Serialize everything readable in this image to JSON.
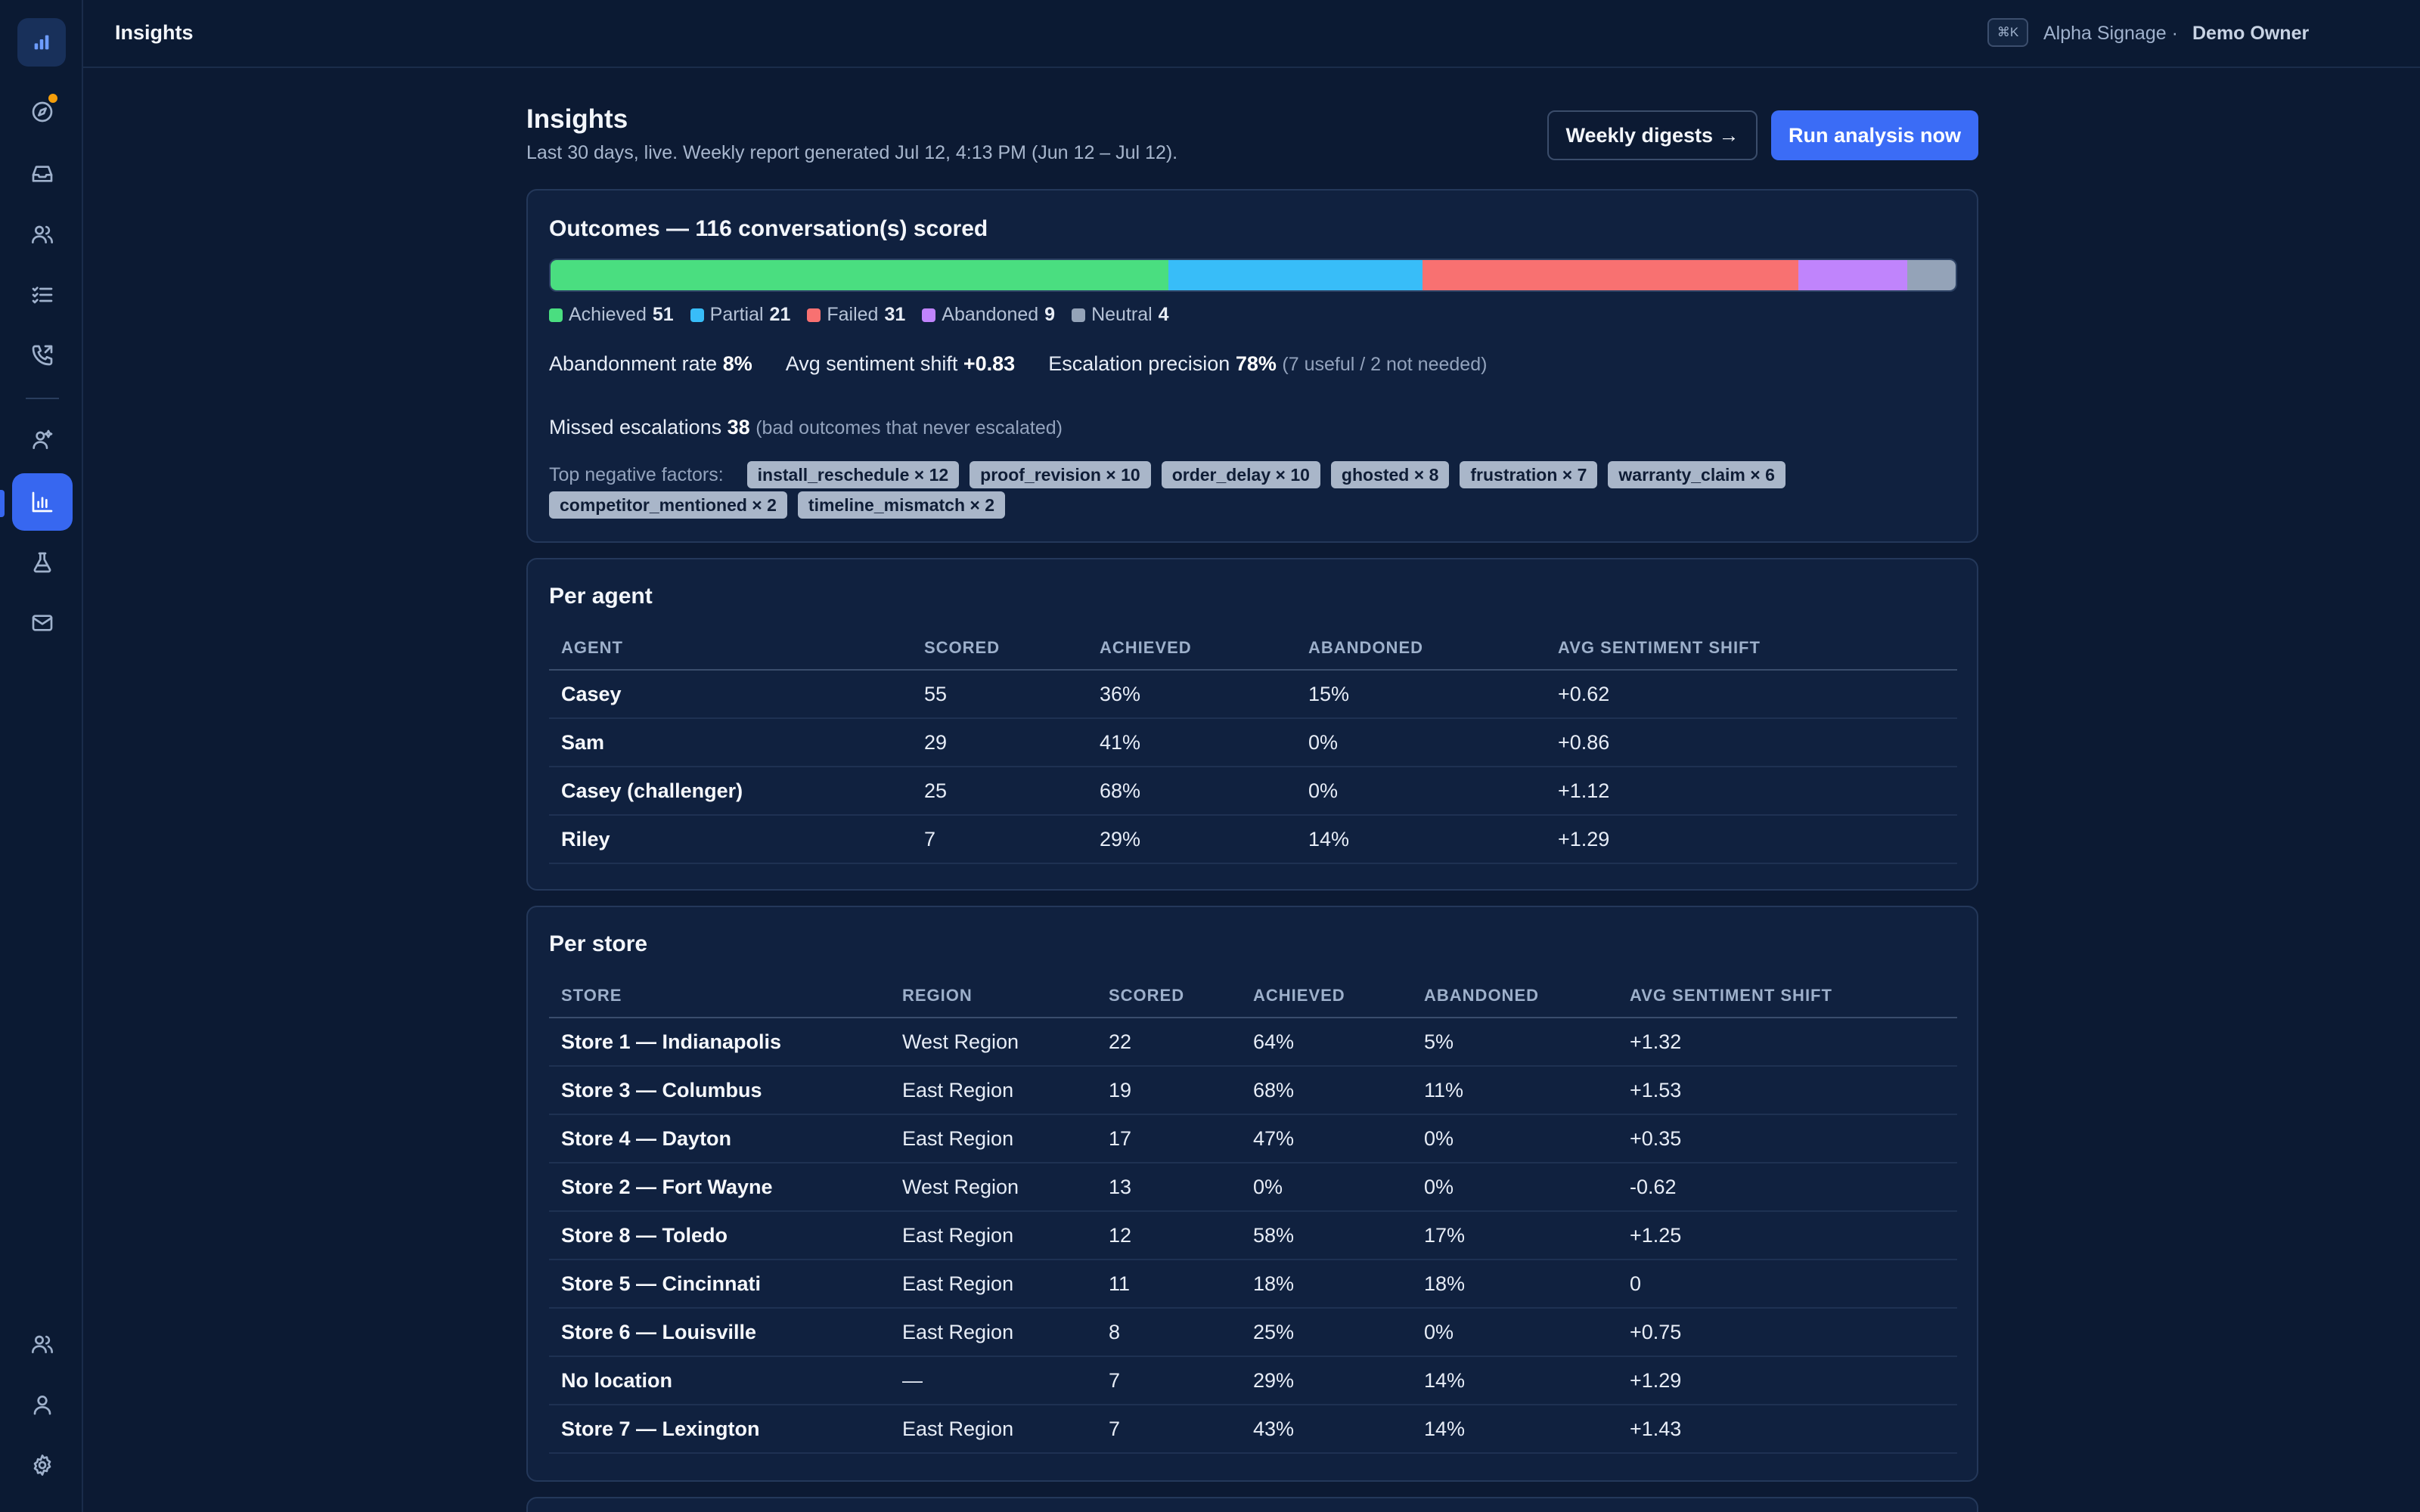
{
  "app": {
    "title": "Insights",
    "kbd": "⌘K",
    "org": "Alpha Signage ·",
    "owner": "Demo Owner"
  },
  "header": {
    "title": "Insights",
    "subtitle": "Last 30 days, live. Weekly report generated Jul 12, 4:13 PM (Jun 12 – Jul 12).",
    "digest_button": "Weekly digests →",
    "run_button": "Run analysis now"
  },
  "outcomes": {
    "title": "Outcomes — 116 conversation(s) scored",
    "segments": [
      {
        "label": "Achieved",
        "value": 51,
        "color": "#4ade80"
      },
      {
        "label": "Partial",
        "value": 21,
        "color": "#38bdf8"
      },
      {
        "label": "Failed",
        "value": 31,
        "color": "#f87171"
      },
      {
        "label": "Abandoned",
        "value": 9,
        "color": "#c084fc"
      },
      {
        "label": "Neutral",
        "value": 4,
        "color": "#94a3b8"
      }
    ],
    "abandonment_label": "Abandonment rate",
    "abandonment_value": "8%",
    "sentiment_label": "Avg sentiment shift",
    "sentiment_value": "+0.83",
    "escalation_label": "Escalation precision",
    "escalation_value": "78%",
    "escalation_note": "(7 useful / 2 not needed)",
    "missed_label": "Missed escalations",
    "missed_value": "38",
    "missed_note": "(bad outcomes that never escalated)",
    "factors_label": "Top negative factors:",
    "factors": [
      "install_reschedule × 12",
      "proof_revision × 10",
      "order_delay × 10",
      "ghosted × 8",
      "frustration × 7",
      "warranty_claim × 6",
      "competitor_mentioned × 2",
      "timeline_mismatch × 2"
    ]
  },
  "per_agent": {
    "title": "Per agent",
    "columns": [
      "AGENT",
      "SCORED",
      "ACHIEVED",
      "ABANDONED",
      "AVG SENTIMENT SHIFT"
    ],
    "rows": [
      [
        "Casey",
        "55",
        "36%",
        "15%",
        "+0.62"
      ],
      [
        "Sam",
        "29",
        "41%",
        "0%",
        "+0.86"
      ],
      [
        "Casey (challenger)",
        "25",
        "68%",
        "0%",
        "+1.12"
      ],
      [
        "Riley",
        "7",
        "29%",
        "14%",
        "+1.29"
      ]
    ]
  },
  "per_store": {
    "title": "Per store",
    "columns": [
      "STORE",
      "REGION",
      "SCORED",
      "ACHIEVED",
      "ABANDONED",
      "AVG SENTIMENT SHIFT"
    ],
    "rows": [
      [
        "Store 1 — Indianapolis",
        "West Region",
        "22",
        "64%",
        "5%",
        "+1.32"
      ],
      [
        "Store 3 — Columbus",
        "East Region",
        "19",
        "68%",
        "11%",
        "+1.53"
      ],
      [
        "Store 4 — Dayton",
        "East Region",
        "17",
        "47%",
        "0%",
        "+0.35"
      ],
      [
        "Store 2 — Fort Wayne",
        "West Region",
        "13",
        "0%",
        "0%",
        "-0.62"
      ],
      [
        "Store 8 — Toledo",
        "East Region",
        "12",
        "58%",
        "17%",
        "+1.25"
      ],
      [
        "Store 5 — Cincinnati",
        "East Region",
        "11",
        "18%",
        "18%",
        "0"
      ],
      [
        "Store 6 — Louisville",
        "East Region",
        "8",
        "25%",
        "0%",
        "+0.75"
      ],
      [
        "No location",
        "—",
        "7",
        "29%",
        "14%",
        "+1.29"
      ],
      [
        "Store 7 — Lexington",
        "East Region",
        "7",
        "43%",
        "14%",
        "+1.43"
      ]
    ]
  },
  "sidebar": {
    "items": [
      "logo-icon",
      "compass-icon",
      "inbox-icon",
      "users-icon",
      "tasks-icon",
      "phone-icon",
      "agent-icon",
      "chart-icon",
      "flask-icon",
      "mail-icon",
      "team-icon",
      "user-icon",
      "gear-icon"
    ]
  }
}
